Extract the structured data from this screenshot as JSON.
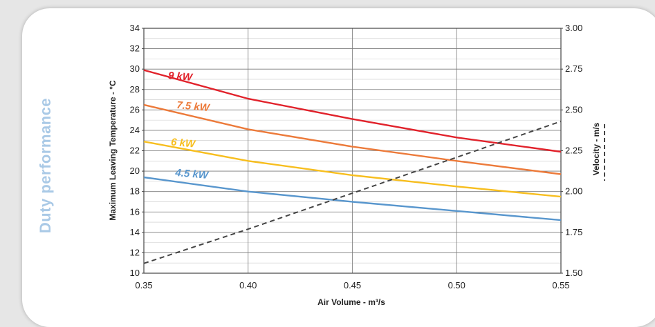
{
  "side_title": "Duty performance",
  "chart_data": {
    "type": "line",
    "xlabel": "Air Volume - m³/s",
    "ylabel": "Maximum Leaving Temperature   - °C",
    "y2label": "Velocity - m/s",
    "xlim": [
      0.35,
      0.55
    ],
    "ylim": [
      10,
      34
    ],
    "y2lim": [
      1.5,
      3.0
    ],
    "x_ticks": [
      "0.35",
      "0.40",
      "0.45",
      "0.50",
      "0.55"
    ],
    "y_ticks": [
      "10",
      "12",
      "14",
      "16",
      "18",
      "20",
      "22",
      "24",
      "26",
      "28",
      "30",
      "32",
      "34"
    ],
    "y2_ticks": [
      "1.50",
      "1.75",
      "2.00",
      "2.25",
      "2.50",
      "2.75",
      "3.00"
    ],
    "grid": true,
    "series": [
      {
        "name": "9 kW",
        "axis": "left",
        "color": "#e1222b",
        "x": [
          0.35,
          0.4,
          0.45,
          0.5,
          0.55
        ],
        "y": [
          29.9,
          27.1,
          25.1,
          23.3,
          21.9
        ]
      },
      {
        "name": "7.5 kW",
        "axis": "left",
        "color": "#ec7a3a",
        "x": [
          0.35,
          0.4,
          0.45,
          0.5,
          0.55
        ],
        "y": [
          26.5,
          24.1,
          22.4,
          21.0,
          19.7
        ]
      },
      {
        "name": "6 kW",
        "axis": "left",
        "color": "#f7be1e",
        "x": [
          0.35,
          0.4,
          0.45,
          0.5,
          0.55
        ],
        "y": [
          22.9,
          21.0,
          19.6,
          18.5,
          17.5
        ]
      },
      {
        "name": "4.5 kW",
        "axis": "left",
        "color": "#5896cd",
        "x": [
          0.35,
          0.4,
          0.45,
          0.5,
          0.55
        ],
        "y": [
          19.4,
          18.0,
          17.0,
          16.1,
          15.2
        ]
      },
      {
        "name": "Velocity",
        "axis": "right",
        "color": "#444444",
        "dashed": true,
        "x": [
          0.35,
          0.4,
          0.45,
          0.5,
          0.55
        ],
        "y": [
          1.56,
          1.77,
          1.99,
          2.21,
          2.43
        ]
      }
    ]
  }
}
